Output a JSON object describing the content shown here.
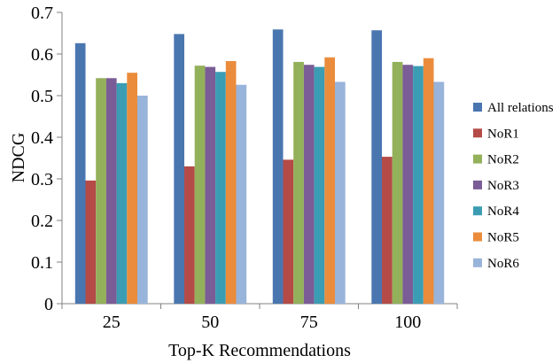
{
  "chart_data": {
    "type": "bar",
    "title": "",
    "xlabel": "Top-K Recommendations",
    "ylabel": "NDCG",
    "categories": [
      "25",
      "50",
      "75",
      "100"
    ],
    "ylim": [
      0,
      0.7
    ],
    "yticks": [
      "0",
      "0.1",
      "0.2",
      "0.3",
      "0.4",
      "0.5",
      "0.6",
      "0.7"
    ],
    "grid": false,
    "legend_position": "right",
    "series": [
      {
        "name": "All relations",
        "color": "#4a76b0",
        "values": [
          0.626,
          0.648,
          0.659,
          0.657
        ]
      },
      {
        "name": "NoR1",
        "color": "#b44b47",
        "values": [
          0.296,
          0.33,
          0.346,
          0.353
        ]
      },
      {
        "name": "NoR2",
        "color": "#93b05a",
        "values": [
          0.542,
          0.572,
          0.581,
          0.581
        ]
      },
      {
        "name": "NoR3",
        "color": "#7a5c96",
        "values": [
          0.542,
          0.569,
          0.574,
          0.574
        ]
      },
      {
        "name": "NoR4",
        "color": "#3b9db4",
        "values": [
          0.53,
          0.557,
          0.569,
          0.571
        ]
      },
      {
        "name": "NoR5",
        "color": "#ea8c3c",
        "values": [
          0.555,
          0.583,
          0.592,
          0.59
        ]
      },
      {
        "name": "NoR6",
        "color": "#99b4db",
        "values": [
          0.5,
          0.526,
          0.533,
          0.533
        ]
      }
    ]
  }
}
